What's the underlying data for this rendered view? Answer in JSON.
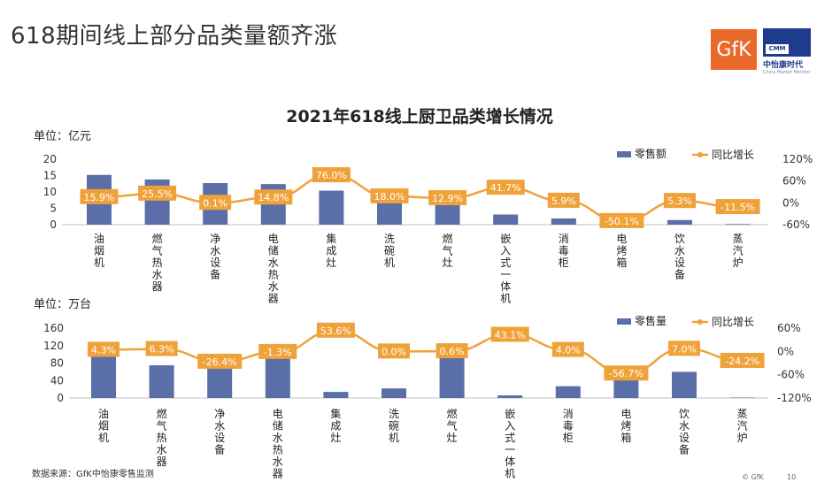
{
  "page": {
    "title": "618期间线上部分品类量额齐涨",
    "logo_gfk": "GfK",
    "logo_cmm": {
      "box": "CMM",
      "name": "中怡康时代",
      "sub": "China Market Monitor"
    },
    "source": "数据来源：GfK中怡康零售监测",
    "copyright": "© GfK",
    "page_number": "10"
  },
  "colors": {
    "bar": "#5a6ea8",
    "line": "#f0a23a",
    "label_bg": "#f0a23a",
    "label_text": "#ffffff"
  },
  "chart_data": [
    {
      "type": "bar",
      "title": "2021年618线上厨卫品类增长情况",
      "unit_label": "单位：亿元",
      "categories": [
        "油烟机",
        "燃气热水器",
        "净水设备",
        "电储水热水器",
        "集成灶",
        "洗碗机",
        "燃气灶",
        "嵌入式一体机",
        "消毒柜",
        "电烤箱",
        "饮水设备",
        "蒸汽炉"
      ],
      "series": [
        {
          "name": "零售额",
          "type": "bar",
          "axis": "left",
          "values": [
            15.2,
            13.8,
            12.7,
            12.4,
            10.4,
            8.7,
            8.7,
            3.1,
            1.9,
            0.9,
            1.4,
            0.2
          ]
        },
        {
          "name": "同比增长",
          "type": "line",
          "axis": "right",
          "values": [
            15.9,
            25.5,
            0.1,
            14.8,
            76.0,
            18.0,
            12.9,
            41.7,
            5.9,
            -50.1,
            5.3,
            -11.5
          ],
          "labels": [
            "15.9%",
            "25.5%",
            "0.1%",
            "14.8%",
            "76.0%",
            "18.0%",
            "12.9%",
            "41.7%",
            "5.9%",
            "-50.1%",
            "5.3%",
            "-11.5%"
          ]
        }
      ],
      "left_axis": {
        "range": [
          0,
          20
        ],
        "ticks": [
          "0",
          "5",
          "10",
          "15",
          "20"
        ]
      },
      "right_axis": {
        "range": [
          -60,
          120
        ],
        "ticks": [
          "-60%",
          "0%",
          "60%",
          "120%"
        ]
      },
      "legend_position": "top-right",
      "grid": false
    },
    {
      "type": "bar",
      "title": "",
      "unit_label": "单位：万台",
      "categories": [
        "油烟机",
        "燃气热水器",
        "净水设备",
        "电储水热水器",
        "集成灶",
        "洗碗机",
        "燃气灶",
        "嵌入式一体机",
        "消毒柜",
        "电烤箱",
        "饮水设备",
        "蒸汽炉"
      ],
      "series": [
        {
          "name": "零售量",
          "type": "bar",
          "axis": "left",
          "values": [
            97,
            75,
            96,
            123,
            14,
            22,
            100,
            6,
            27,
            43,
            60,
            1
          ]
        },
        {
          "name": "同比增长",
          "type": "line",
          "axis": "right",
          "values": [
            4.3,
            6.3,
            -26.4,
            -1.3,
            53.6,
            0.0,
            0.6,
            43.1,
            4.0,
            -56.7,
            7.0,
            -24.2
          ],
          "labels": [
            "4.3%",
            "6.3%",
            "-26.4%",
            "-1.3%",
            "53.6%",
            "0.0%",
            "0.6%",
            "43.1%",
            "4.0%",
            "-56.7%",
            "7.0%",
            "-24.2%"
          ]
        }
      ],
      "left_axis": {
        "range": [
          0,
          160
        ],
        "ticks": [
          "0",
          "40",
          "80",
          "120",
          "160"
        ]
      },
      "right_axis": {
        "range": [
          -120,
          60
        ],
        "ticks": [
          "-120%",
          "-60%",
          "0%",
          "60%"
        ]
      },
      "legend_position": "top-right",
      "grid": false
    }
  ]
}
